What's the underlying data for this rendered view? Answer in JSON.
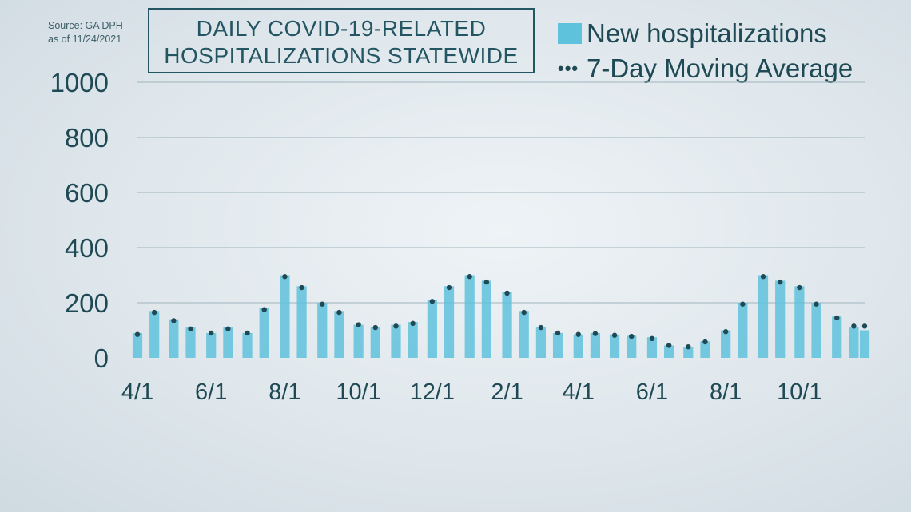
{
  "source": {
    "line1": "Source: GA DPH",
    "line2": "as of 11/24/2021"
  },
  "title": {
    "line1": "DAILY COVID-19-RELATED",
    "line2": "HOSPITALIZATIONS STATEWIDE"
  },
  "legend": {
    "bars": "New hospitalizations",
    "line": "7-Day Moving Average"
  },
  "colors": {
    "bars": "#5fc2dd",
    "average": "#1f4a55",
    "grid": "#9fb3bc"
  },
  "chart_data": {
    "type": "bar",
    "title": "DAILY COVID-19-RELATED HOSPITALIZATIONS STATEWIDE",
    "ylim": [
      0,
      1000
    ],
    "yticks": [
      0,
      200,
      400,
      600,
      800,
      1000
    ],
    "x_tick_labels": [
      "4/1",
      "6/1",
      "8/1",
      "10/1",
      "12/1",
      "2/1",
      "4/1",
      "6/1",
      "8/1",
      "10/1"
    ],
    "grid": true,
    "legend_position": "top-right",
    "series": [
      {
        "name": "New hospitalizations",
        "type": "bar",
        "x": [
          "2020-04-01",
          "2020-04-15",
          "2020-05-01",
          "2020-05-15",
          "2020-06-01",
          "2020-06-15",
          "2020-07-01",
          "2020-07-15",
          "2020-08-01",
          "2020-08-15",
          "2020-09-01",
          "2020-09-15",
          "2020-10-01",
          "2020-10-15",
          "2020-11-01",
          "2020-11-15",
          "2020-12-01",
          "2020-12-15",
          "2021-01-01",
          "2021-01-15",
          "2021-02-01",
          "2021-02-15",
          "2021-03-01",
          "2021-03-15",
          "2021-04-01",
          "2021-04-15",
          "2021-05-01",
          "2021-05-15",
          "2021-06-01",
          "2021-06-15",
          "2021-07-01",
          "2021-07-15",
          "2021-08-01",
          "2021-08-15",
          "2021-09-01",
          "2021-09-15",
          "2021-10-01",
          "2021-10-15",
          "2021-11-01",
          "2021-11-15",
          "2021-11-24"
        ],
        "values": [
          90,
          170,
          140,
          110,
          90,
          110,
          90,
          180,
          300,
          260,
          200,
          170,
          120,
          110,
          120,
          130,
          210,
          260,
          300,
          280,
          240,
          170,
          110,
          90,
          85,
          90,
          85,
          80,
          75,
          45,
          40,
          60,
          100,
          200,
          300,
          280,
          260,
          200,
          150,
          110,
          100
        ]
      },
      {
        "name": "7-Day Moving Average",
        "type": "line",
        "x": [
          "2020-04-01",
          "2020-04-15",
          "2020-05-01",
          "2020-05-15",
          "2020-06-01",
          "2020-06-15",
          "2020-07-01",
          "2020-07-15",
          "2020-08-01",
          "2020-08-15",
          "2020-09-01",
          "2020-09-15",
          "2020-10-01",
          "2020-10-15",
          "2020-11-01",
          "2020-11-15",
          "2020-12-01",
          "2020-12-15",
          "2021-01-01",
          "2021-01-15",
          "2021-02-01",
          "2021-02-15",
          "2021-03-01",
          "2021-03-15",
          "2021-04-01",
          "2021-04-15",
          "2021-05-01",
          "2021-05-15",
          "2021-06-01",
          "2021-06-15",
          "2021-07-01",
          "2021-07-15",
          "2021-08-01",
          "2021-08-15",
          "2021-09-01",
          "2021-09-15",
          "2021-10-01",
          "2021-10-15",
          "2021-11-01",
          "2021-11-15",
          "2021-11-24"
        ],
        "values": [
          85,
          165,
          135,
          105,
          90,
          105,
          90,
          175,
          295,
          255,
          195,
          165,
          120,
          110,
          115,
          125,
          205,
          255,
          295,
          275,
          235,
          165,
          110,
          90,
          85,
          88,
          82,
          78,
          70,
          45,
          40,
          58,
          95,
          195,
          295,
          275,
          255,
          195,
          145,
          115,
          115
        ]
      }
    ]
  }
}
